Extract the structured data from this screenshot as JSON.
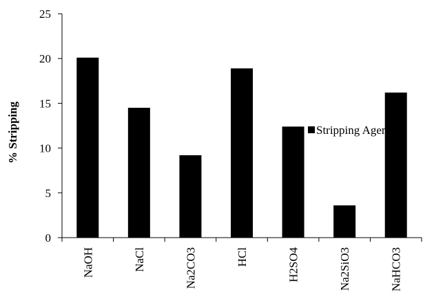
{
  "chart_data": {
    "type": "bar",
    "title": "",
    "xlabel": "",
    "ylabel": "% Stripping",
    "categories": [
      "NaOH",
      "NaCl",
      "Na2CO3",
      "HCl",
      "H2SO4",
      "Na2SiO3",
      "NaHCO3"
    ],
    "series": [
      {
        "name": "Stripping Agents",
        "values": [
          20.1,
          14.5,
          9.2,
          18.9,
          12.4,
          3.6,
          16.2
        ],
        "color": "#000000"
      }
    ],
    "ylim": [
      0,
      25
    ],
    "yticks": [
      0,
      5,
      10,
      15,
      20,
      25
    ],
    "grid": false,
    "legend_position": "right"
  }
}
